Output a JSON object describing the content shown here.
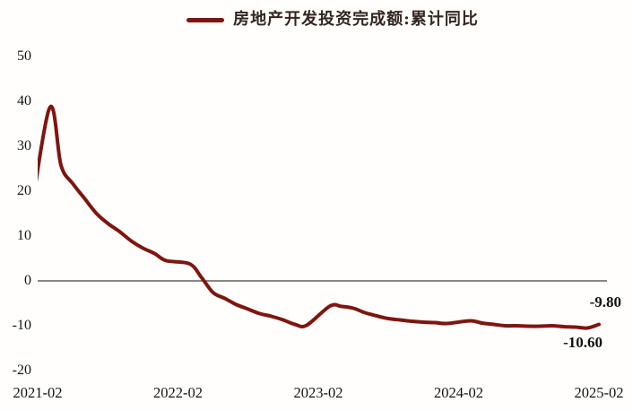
{
  "chart_data": {
    "type": "line",
    "legend": "房地产开发投资完成额:累计同比",
    "line_color": "#7E160F",
    "legend_text_color": "#332621",
    "axis_text_color": "#141414",
    "zero_line_color": "#404040",
    "background_color": "#fffefc",
    "grid": false,
    "legend_position": "top-center",
    "x_ticks": [
      "2021-02",
      "2022-02",
      "2023-02",
      "2024-02",
      "2025-02"
    ],
    "y_ticks": [
      50,
      40,
      30,
      20,
      10,
      0,
      -10,
      -20
    ],
    "ylim": [
      -20,
      50
    ],
    "series": [
      {
        "name": "房地产开发投资完成额:累计同比",
        "points": [
          [
            "2020-12",
            7.0,
            -1
          ],
          [
            "2021-02",
            38.3,
            1
          ],
          [
            "2021-03",
            25.6,
            2
          ],
          [
            "2021-04",
            21.6,
            3
          ],
          [
            "2021-05",
            18.3,
            4
          ],
          [
            "2021-06",
            15.0,
            5
          ],
          [
            "2021-07",
            12.7,
            6
          ],
          [
            "2021-08",
            10.9,
            7
          ],
          [
            "2021-09",
            8.8,
            8
          ],
          [
            "2021-10",
            7.2,
            9
          ],
          [
            "2021-11",
            6.0,
            10
          ],
          [
            "2021-12",
            4.4,
            11
          ],
          [
            "2022-02",
            3.7,
            13
          ],
          [
            "2022-03",
            0.7,
            14
          ],
          [
            "2022-04",
            -2.7,
            15
          ],
          [
            "2022-05",
            -4.0,
            16
          ],
          [
            "2022-06",
            -5.4,
            17
          ],
          [
            "2022-07",
            -6.4,
            18
          ],
          [
            "2022-08",
            -7.4,
            19
          ],
          [
            "2022-09",
            -8.0,
            20
          ],
          [
            "2022-10",
            -8.8,
            21
          ],
          [
            "2022-11",
            -9.8,
            22
          ],
          [
            "2022-12",
            -10.0,
            23
          ],
          [
            "2023-02",
            -5.7,
            25
          ],
          [
            "2023-03",
            -5.8,
            26
          ],
          [
            "2023-04",
            -6.2,
            27
          ],
          [
            "2023-05",
            -7.2,
            28
          ],
          [
            "2023-06",
            -7.9,
            29
          ],
          [
            "2023-07",
            -8.5,
            30
          ],
          [
            "2023-08",
            -8.8,
            31
          ],
          [
            "2023-09",
            -9.1,
            32
          ],
          [
            "2023-10",
            -9.3,
            33
          ],
          [
            "2023-11",
            -9.4,
            34
          ],
          [
            "2023-12",
            -9.6,
            35
          ],
          [
            "2024-02",
            -9.0,
            37
          ],
          [
            "2024-03",
            -9.5,
            38
          ],
          [
            "2024-04",
            -9.8,
            39
          ],
          [
            "2024-05",
            -10.1,
            40
          ],
          [
            "2024-06",
            -10.1,
            41
          ],
          [
            "2024-07",
            -10.2,
            42
          ],
          [
            "2024-08",
            -10.2,
            43
          ],
          [
            "2024-09",
            -10.1,
            44
          ],
          [
            "2024-10",
            -10.3,
            45
          ],
          [
            "2024-11",
            -10.4,
            46
          ],
          [
            "2024-12",
            -10.6,
            47
          ],
          [
            "2025-02",
            -9.8,
            48
          ]
        ]
      }
    ],
    "annotations": [
      {
        "text": "-9.80",
        "month": "2025-02",
        "value": -9.8
      },
      {
        "text": "-10.60",
        "month": "2024-12",
        "value": -10.6
      }
    ]
  }
}
